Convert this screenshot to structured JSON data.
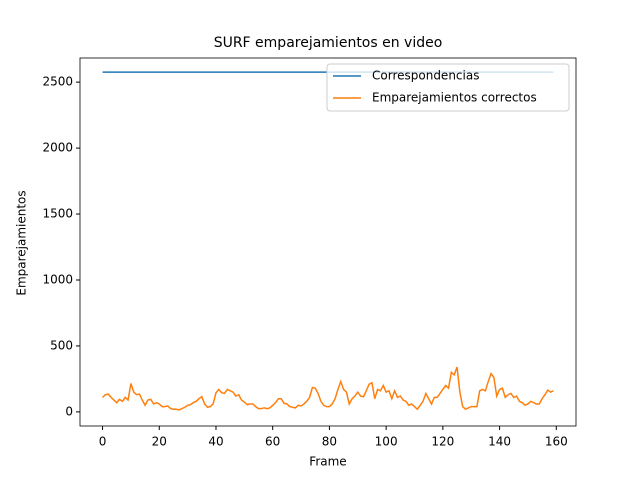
{
  "chart_data": {
    "type": "line",
    "title": "SURF emparejamientos en video",
    "xlabel": "Frame",
    "ylabel": "Emparejamientos",
    "x": [
      0,
      1,
      2,
      3,
      4,
      5,
      6,
      7,
      8,
      9,
      10,
      11,
      12,
      13,
      14,
      15,
      16,
      17,
      18,
      19,
      20,
      21,
      22,
      23,
      24,
      25,
      26,
      27,
      28,
      29,
      30,
      31,
      32,
      33,
      34,
      35,
      36,
      37,
      38,
      39,
      40,
      41,
      42,
      43,
      44,
      45,
      46,
      47,
      48,
      49,
      50,
      51,
      52,
      53,
      54,
      55,
      56,
      57,
      58,
      59,
      60,
      61,
      62,
      63,
      64,
      65,
      66,
      67,
      68,
      69,
      70,
      71,
      72,
      73,
      74,
      75,
      76,
      77,
      78,
      79,
      80,
      81,
      82,
      83,
      84,
      85,
      86,
      87,
      88,
      89,
      90,
      91,
      92,
      93,
      94,
      95,
      96,
      97,
      98,
      99,
      100,
      101,
      102,
      103,
      104,
      105,
      106,
      107,
      108,
      109,
      110,
      111,
      112,
      113,
      114,
      115,
      116,
      117,
      118,
      119,
      120,
      121,
      122,
      123,
      124,
      125,
      126,
      127,
      128,
      129,
      130,
      131,
      132,
      133,
      134,
      135,
      136,
      137,
      138,
      139,
      140,
      141,
      142,
      143,
      144,
      145,
      146,
      147,
      148,
      149,
      150,
      151,
      152,
      153,
      154,
      155,
      156,
      157,
      158,
      159
    ],
    "series": [
      {
        "name": "Correspondencias",
        "color": "#1f77b4",
        "values": [
          2576,
          2576,
          2576,
          2576,
          2576,
          2576,
          2576,
          2576,
          2576,
          2576,
          2576,
          2576,
          2576,
          2576,
          2576,
          2576,
          2576,
          2576,
          2576,
          2576,
          2576,
          2576,
          2576,
          2576,
          2576,
          2576,
          2576,
          2576,
          2576,
          2576,
          2576,
          2576,
          2576,
          2576,
          2576,
          2576,
          2576,
          2576,
          2576,
          2576,
          2576,
          2576,
          2576,
          2576,
          2576,
          2576,
          2576,
          2576,
          2576,
          2576,
          2576,
          2576,
          2576,
          2576,
          2576,
          2576,
          2576,
          2576,
          2576,
          2576,
          2576,
          2576,
          2576,
          2576,
          2576,
          2576,
          2576,
          2576,
          2576,
          2576,
          2576,
          2576,
          2576,
          2576,
          2576,
          2576,
          2576,
          2576,
          2576,
          2576,
          2576,
          2576,
          2576,
          2576,
          2576,
          2576,
          2576,
          2576,
          2576,
          2576,
          2576,
          2576,
          2576,
          2576,
          2576,
          2576,
          2576,
          2576,
          2576,
          2576,
          2576,
          2576,
          2576,
          2576,
          2576,
          2576,
          2576,
          2576,
          2576,
          2576,
          2576,
          2576,
          2576,
          2576,
          2576,
          2576,
          2576,
          2576,
          2576,
          2576,
          2576,
          2576,
          2576,
          2576,
          2576,
          2576,
          2576,
          2576,
          2576,
          2576,
          2576,
          2576,
          2576,
          2576,
          2576,
          2576,
          2576,
          2576,
          2576,
          2576,
          2576,
          2576,
          2576,
          2576,
          2576,
          2576,
          2576,
          2576,
          2576,
          2576,
          2576,
          2576,
          2576,
          2576,
          2576,
          2576,
          2576,
          2576,
          2576,
          2576
        ]
      },
      {
        "name": "Emparejamientos correctos",
        "color": "#ff7f0e",
        "values": [
          110,
          130,
          135,
          110,
          90,
          70,
          95,
          80,
          110,
          90,
          215,
          150,
          130,
          135,
          90,
          50,
          90,
          95,
          60,
          70,
          60,
          40,
          40,
          45,
          25,
          20,
          20,
          15,
          25,
          35,
          50,
          55,
          70,
          80,
          100,
          115,
          60,
          35,
          40,
          60,
          145,
          170,
          145,
          140,
          170,
          160,
          150,
          120,
          130,
          90,
          75,
          55,
          60,
          60,
          40,
          25,
          25,
          30,
          25,
          30,
          50,
          70,
          100,
          100,
          65,
          60,
          40,
          35,
          30,
          50,
          45,
          60,
          80,
          110,
          185,
          180,
          140,
          80,
          50,
          40,
          40,
          60,
          100,
          170,
          230,
          170,
          150,
          60,
          100,
          120,
          150,
          120,
          115,
          160,
          210,
          220,
          100,
          170,
          160,
          200,
          150,
          160,
          100,
          160,
          110,
          120,
          90,
          80,
          50,
          60,
          40,
          20,
          50,
          80,
          140,
          100,
          60,
          110,
          110,
          140,
          170,
          200,
          180,
          300,
          280,
          340,
          150,
          40,
          20,
          30,
          40,
          40,
          40,
          160,
          170,
          160,
          230,
          290,
          260,
          120,
          170,
          180,
          110,
          130,
          140,
          110,
          120,
          80,
          70,
          50,
          60,
          80,
          70,
          60,
          60,
          100,
          130,
          165,
          150,
          160
        ]
      }
    ],
    "xlim": [
      -7.95,
      166.95
    ],
    "xticks": [
      0,
      20,
      40,
      60,
      80,
      100,
      120,
      140,
      160
    ],
    "ylim": [
      -107,
      2683
    ],
    "yticks": [
      0,
      500,
      1000,
      1500,
      2000,
      2500
    ],
    "legend": "upper right"
  }
}
